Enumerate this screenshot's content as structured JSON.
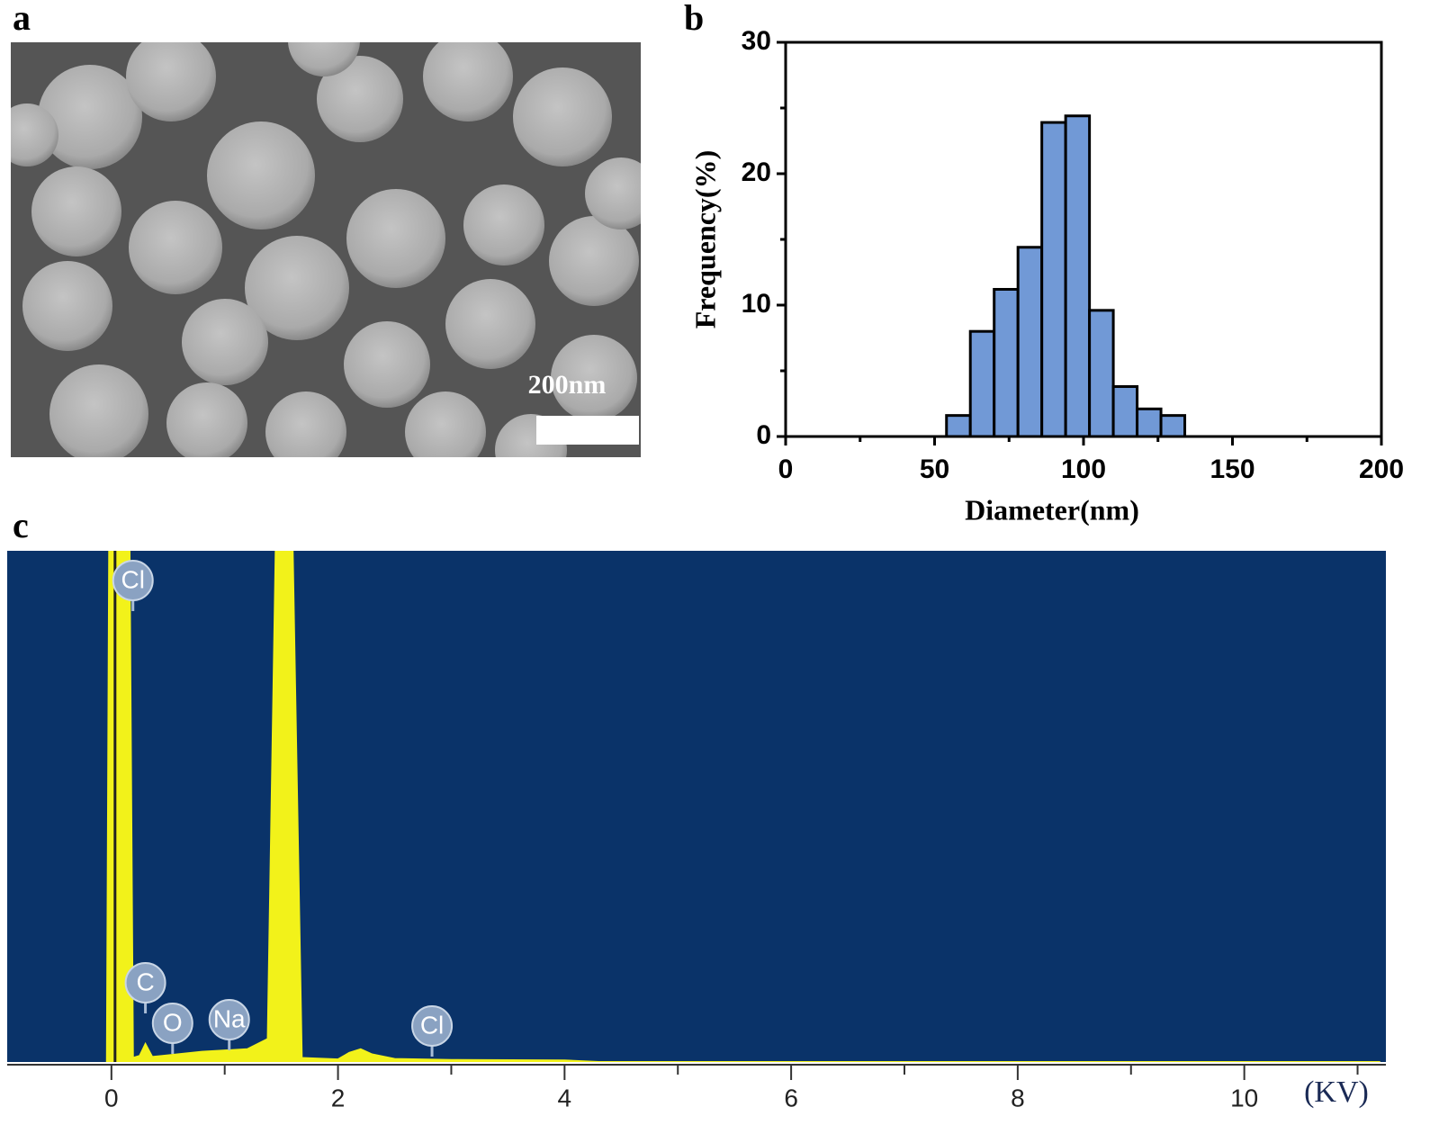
{
  "image": {
    "panel_label": "a",
    "scale_bar_label": "200nm"
  },
  "chart_data": [
    {
      "type": "histogram",
      "panel_label": "b",
      "xlabel": "Diameter(nm)",
      "ylabel": "Frequency(%)",
      "bins": [
        54,
        62,
        70,
        78,
        86,
        94,
        102,
        110,
        118,
        126,
        134
      ],
      "values": [
        1.6,
        8.0,
        11.2,
        14.4,
        23.9,
        24.4,
        9.6,
        3.8,
        2.1,
        1.6
      ],
      "color": "#7199d6",
      "xlim": [
        0,
        200
      ],
      "ylim": [
        0,
        30
      ],
      "xticks": [
        0,
        50,
        100,
        150,
        200
      ],
      "yticks": [
        0,
        10,
        20,
        30
      ],
      "xminorticks": [
        25,
        75,
        125,
        175
      ],
      "yminorticks": [
        5,
        15,
        25
      ]
    },
    {
      "type": "line",
      "panel_label": "c",
      "xlabel": "(KV)",
      "x": [
        -0.04,
        -0.02,
        0.16,
        0.19,
        0.25,
        0.3,
        0.36,
        0.45,
        0.8,
        1.2,
        1.38,
        1.45,
        1.6,
        1.68,
        2.0,
        2.1,
        2.2,
        2.3,
        2.5,
        3.0,
        4.0,
        4.3,
        11.2
      ],
      "values": [
        0,
        100,
        100,
        0.8,
        1.2,
        3.5,
        1.0,
        1.2,
        2.0,
        2.5,
        4.5,
        100,
        100,
        0.8,
        0.5,
        1.8,
        2.5,
        1.5,
        0.6,
        0.4,
        0.3,
        0,
        0
      ],
      "color": "#f2f21a",
      "xlim": [
        -0.92,
        11.25
      ],
      "ylim": [
        0,
        100
      ],
      "xticks": [
        0,
        2,
        4,
        6,
        8,
        10
      ],
      "xminorticks": [
        1,
        3,
        5,
        7,
        9,
        11
      ],
      "annotations": [
        {
          "label": "Cl",
          "x": 0.19
        },
        {
          "label": "C",
          "x": 0.3
        },
        {
          "label": "O",
          "x": 0.54
        },
        {
          "label": "Na",
          "x": 1.04
        },
        {
          "label": "Cl",
          "x": 2.83
        }
      ]
    }
  ]
}
